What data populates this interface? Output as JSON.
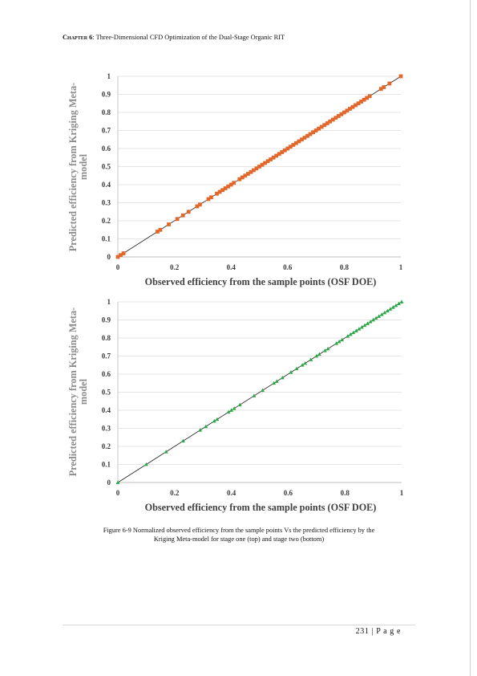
{
  "header": {
    "chapter_label": "Chapter 6",
    "title": ": Three-Dimensional CFD Optimization of the Dual-Stage Organic RIT"
  },
  "caption": {
    "line1": "Figure 6-9 Normalized observed efficiency from the sample points Vs the predicted efficiency by the",
    "line2": "Kriging Meta-model for stage one (top) and stage two (bottom)"
  },
  "footer": {
    "page": "231 | P a g e"
  },
  "chart_data": [
    {
      "type": "scatter",
      "ylabel_line1": "Predicted efficiency from Kriging Meta-",
      "ylabel_line2": "model",
      "xlabel": "Observed efficiency from the sample points (OSF DOE)",
      "xlim": [
        0,
        1
      ],
      "ylim": [
        0,
        1
      ],
      "xticks": [
        "0",
        "0.2",
        "0.4",
        "0.6",
        "0.8",
        "1"
      ],
      "yticks": [
        "0",
        "0.1",
        "0.2",
        "0.3",
        "0.4",
        "0.5",
        "0.6",
        "0.7",
        "0.8",
        "0.9",
        "1"
      ],
      "grid": true,
      "marker_color": "#e2672a",
      "marker": "square",
      "reference_line": [
        [
          0,
          0
        ],
        [
          1,
          1
        ]
      ],
      "points": [
        0.0,
        0.01,
        0.02,
        0.14,
        0.15,
        0.18,
        0.21,
        0.23,
        0.25,
        0.28,
        0.29,
        0.32,
        0.33,
        0.35,
        0.36,
        0.37,
        0.38,
        0.39,
        0.4,
        0.41,
        0.43,
        0.44,
        0.45,
        0.46,
        0.47,
        0.48,
        0.49,
        0.5,
        0.51,
        0.52,
        0.53,
        0.54,
        0.55,
        0.56,
        0.57,
        0.58,
        0.59,
        0.6,
        0.61,
        0.62,
        0.63,
        0.64,
        0.65,
        0.66,
        0.67,
        0.68,
        0.69,
        0.7,
        0.71,
        0.72,
        0.73,
        0.74,
        0.75,
        0.76,
        0.77,
        0.78,
        0.79,
        0.8,
        0.81,
        0.82,
        0.83,
        0.84,
        0.85,
        0.86,
        0.87,
        0.88,
        0.89,
        0.93,
        0.94,
        0.96,
        1.0
      ]
    },
    {
      "type": "scatter",
      "ylabel_line1": "Predicted efficiency from Kriging Meta-",
      "ylabel_line2": "model",
      "xlabel": "Observed efficiency from the sample points (OSF DOE)",
      "xlim": [
        0,
        1
      ],
      "ylim": [
        0,
        1
      ],
      "xticks": [
        "0",
        "0.2",
        "0.4",
        "0.6",
        "0.8",
        "1"
      ],
      "yticks": [
        "0",
        "0.1",
        "0.2",
        "0.3",
        "0.4",
        "0.5",
        "0.6",
        "0.7",
        "0.8",
        "0.9",
        "1"
      ],
      "grid": true,
      "marker_color": "#2aa846",
      "marker": "triangle",
      "reference_line": [
        [
          0,
          0
        ],
        [
          1,
          1
        ]
      ],
      "points": [
        0.0,
        0.1,
        0.17,
        0.23,
        0.29,
        0.31,
        0.34,
        0.35,
        0.39,
        0.4,
        0.41,
        0.43,
        0.48,
        0.51,
        0.55,
        0.56,
        0.58,
        0.61,
        0.63,
        0.65,
        0.66,
        0.68,
        0.7,
        0.71,
        0.73,
        0.74,
        0.77,
        0.78,
        0.79,
        0.81,
        0.82,
        0.83,
        0.84,
        0.85,
        0.86,
        0.87,
        0.88,
        0.89,
        0.9,
        0.91,
        0.92,
        0.93,
        0.94,
        0.95,
        0.96,
        0.97,
        0.98,
        0.99,
        1.0
      ]
    }
  ]
}
